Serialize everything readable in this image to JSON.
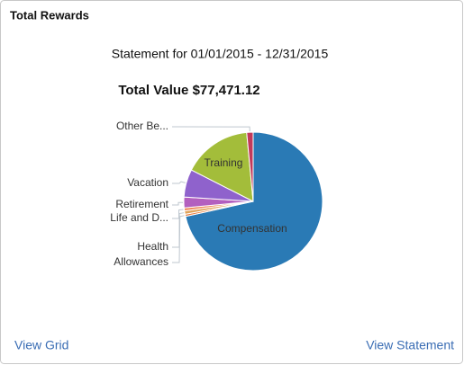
{
  "header": {
    "title": "Total Rewards"
  },
  "chart_data": {
    "type": "pie",
    "subtitle": "Statement for 01/01/2015 - 12/31/2015",
    "title": "Total Value $77,471.12",
    "categories": [
      "Compensation",
      "Allowances",
      "Health",
      "Life and D...",
      "Retirement",
      "Vacation",
      "Training",
      "Other Be..."
    ],
    "values": [
      71.5,
      0.5,
      0.8,
      0.7,
      2.5,
      6.5,
      16,
      1.5
    ],
    "colors": [
      "#2a7ab5",
      "#e87b3c",
      "#e0a35a",
      "#f08a5d",
      "#b35fbf",
      "#8f62cc",
      "#a3bd3a",
      "#c23a5b"
    ]
  },
  "links": [
    "View Grid",
    "View Statement"
  ]
}
